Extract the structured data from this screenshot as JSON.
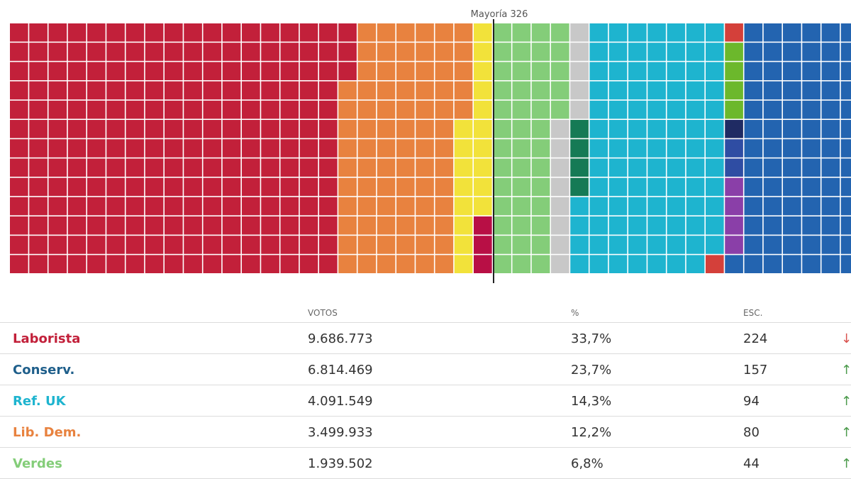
{
  "chart_data": {
    "type": "waffle",
    "annotations": [
      {
        "text": "Mayoría 326"
      }
    ],
    "colors": {
      "laborista": "#c2203a",
      "libdem": "#e8823f",
      "snp": "#f2e23a",
      "verdes": "#84cd79",
      "gris": "#c8c8c8",
      "refuk": "#1eb4cf",
      "conserv": "#2364b0",
      "sinn_fein": "#157a55",
      "dup": "#b80f45",
      "otros_rojo": "#d4403a",
      "otros_verde": "#6cb82c",
      "otros_azul_oscuro": "#1f2b63",
      "otros_azul": "#2f4da3",
      "otros_morado": "#8a3fa8"
    }
  },
  "table": {
    "headers": {
      "votes": "VOTOS",
      "pct": "%",
      "seats": "ESC."
    },
    "rows": [
      {
        "name": "Laborista",
        "votes": "9.686.773",
        "pct": "33,7%",
        "seats": "224",
        "trend": "↓",
        "color": "#c2203a",
        "trend_color": "#d9534f"
      },
      {
        "name": "Conserv.",
        "votes": "6.814.469",
        "pct": "23,7%",
        "seats": "157",
        "trend": "↑",
        "color": "#1f5f8b",
        "trend_color": "#4a9a4a"
      },
      {
        "name": "Ref. UK",
        "votes": "4.091.549",
        "pct": "14,3%",
        "seats": "94",
        "trend": "↑",
        "color": "#1eb4cf",
        "trend_color": "#4a9a4a"
      },
      {
        "name": "Lib. Dem.",
        "votes": "3.499.933",
        "pct": "12,2%",
        "seats": "80",
        "trend": "↑",
        "color": "#e8823f",
        "trend_color": "#4a9a4a"
      },
      {
        "name": "Verdes",
        "votes": "1.939.502",
        "pct": "6,8%",
        "seats": "44",
        "trend": "↑",
        "color": "#84cd79",
        "trend_color": "#4a9a4a"
      }
    ]
  }
}
